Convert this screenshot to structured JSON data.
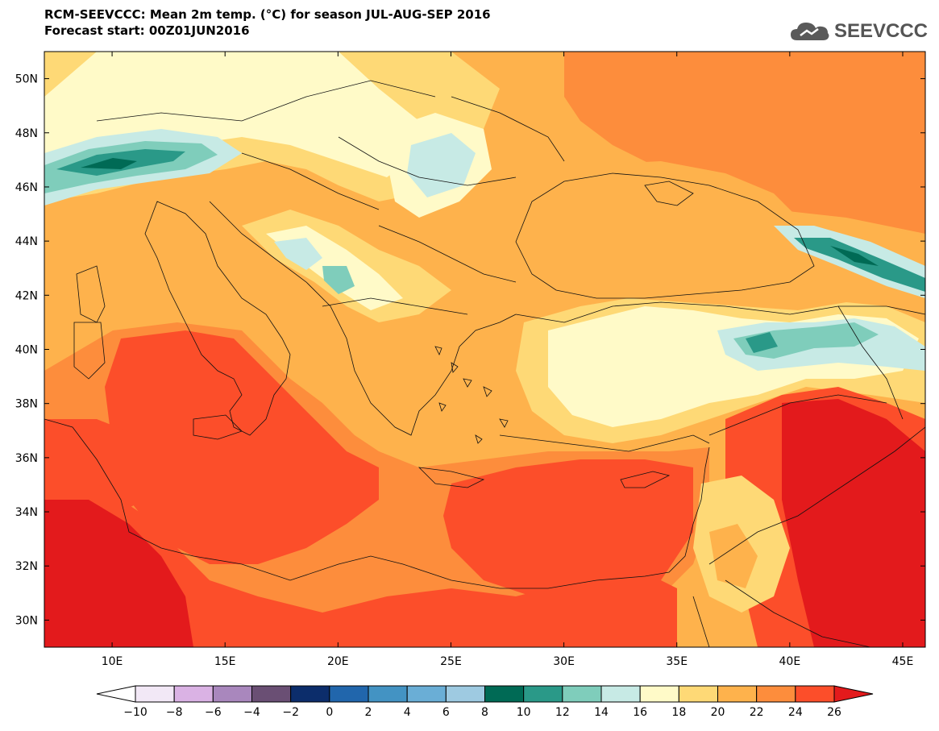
{
  "header": {
    "title": "RCM-SEEVCCC: Mean 2m temp. (°C) for season JUL-AUG-SEP 2016",
    "subtitle": "Forecast start: 00Z01JUN2016"
  },
  "logo": {
    "text": "SEEVCCC",
    "icon": "cloud-logo-icon"
  },
  "map": {
    "lon_range": [
      7,
      46
    ],
    "lat_range": [
      29,
      51
    ],
    "lat_ticks": [
      "50N",
      "48N",
      "46N",
      "44N",
      "42N",
      "40N",
      "38N",
      "36N",
      "34N",
      "32N",
      "30N"
    ],
    "lon_ticks": [
      "10E",
      "15E",
      "20E",
      "25E",
      "30E",
      "35E",
      "40E",
      "45E"
    ]
  },
  "colorbar": {
    "labels": [
      "−10",
      "−8",
      "−6",
      "−4",
      "−2",
      "0",
      "2",
      "4",
      "6",
      "8",
      "10",
      "12",
      "14",
      "16",
      "18",
      "20",
      "22",
      "24",
      "26"
    ],
    "colors": [
      "#f2e8f6",
      "#dab2e4",
      "#a987bd",
      "#6a4f74",
      "#0c2d6b",
      "#2166ac",
      "#4393c3",
      "#6aaed6",
      "#9ecae1",
      "#006a55",
      "#2a9988",
      "#7fcdbb",
      "#c7eae5",
      "#fffac8",
      "#fed976",
      "#feb24c",
      "#fd8d3c",
      "#fc4e2a"
    ],
    "under_color": "#ffffff",
    "over_color": "#e31a1c"
  },
  "legend_colors": {
    "le16": "#c7eae5",
    "t18": "#fffac8",
    "t20": "#fed976",
    "t22": "#feb24c",
    "t24": "#fd8d3c",
    "t26": "#fc4e2a",
    "gt26": "#e31a1c",
    "t12": "#7fcdbb",
    "t10": "#2a9988",
    "t8": "#006a55"
  }
}
